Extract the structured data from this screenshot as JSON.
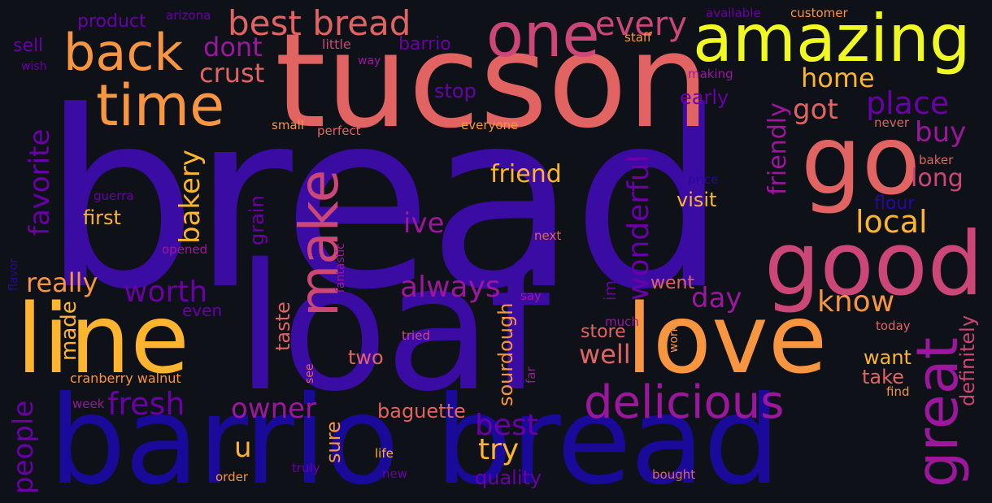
{
  "colors": {
    "background": "#0e1117",
    "dark_indigo": "#3a0ca3",
    "indigo": "#2a07a0",
    "navy": "#1a0a9a",
    "purple": "#6a00a8",
    "magenta": "#9c179e",
    "pink": "#cc4778",
    "salmon": "#e16462",
    "orange": "#f89540",
    "gold": "#fdb42f",
    "yellow": "#f0f921"
  },
  "words": [
    {
      "text": "bread",
      "color": "dark_indigo"
    },
    {
      "text": "tucson",
      "color": "salmon"
    },
    {
      "text": "barrio bread",
      "color": "navy"
    },
    {
      "text": "loaf",
      "color": "dark_indigo"
    },
    {
      "text": "love",
      "color": "orange"
    },
    {
      "text": "line",
      "color": "gold"
    },
    {
      "text": "good",
      "color": "pink"
    },
    {
      "text": "go",
      "color": "salmon"
    },
    {
      "text": "amazing",
      "color": "yellow"
    },
    {
      "text": "one",
      "color": "pink"
    },
    {
      "text": "great",
      "color": "magenta"
    },
    {
      "text": "time",
      "color": "orange"
    },
    {
      "text": "back",
      "color": "orange"
    },
    {
      "text": "make",
      "color": "pink"
    },
    {
      "text": "delicious",
      "color": "magenta"
    },
    {
      "text": "best bread",
      "color": "salmon"
    },
    {
      "text": "every",
      "color": "pink"
    },
    {
      "text": "favorite",
      "color": "purple"
    },
    {
      "text": "bakery",
      "color": "gold"
    },
    {
      "text": "home",
      "color": "gold"
    },
    {
      "text": "place",
      "color": "purple"
    },
    {
      "text": "got",
      "color": "salmon"
    },
    {
      "text": "buy",
      "color": "magenta"
    },
    {
      "text": "long",
      "color": "pink"
    },
    {
      "text": "local",
      "color": "gold"
    },
    {
      "text": "friend",
      "color": "gold"
    },
    {
      "text": "wonderful",
      "color": "purple"
    },
    {
      "text": "friendly",
      "color": "magenta"
    },
    {
      "text": "crust",
      "color": "salmon"
    },
    {
      "text": "dont",
      "color": "magenta"
    },
    {
      "text": "worth",
      "color": "purple"
    },
    {
      "text": "always",
      "color": "magenta"
    },
    {
      "text": "ive",
      "color": "magenta"
    },
    {
      "text": "know",
      "color": "orange"
    },
    {
      "text": "day",
      "color": "magenta"
    },
    {
      "text": "fresh",
      "color": "purple"
    },
    {
      "text": "owner",
      "color": "magenta"
    },
    {
      "text": "best",
      "color": "purple"
    },
    {
      "text": "try",
      "color": "gold"
    },
    {
      "text": "well",
      "color": "salmon"
    },
    {
      "text": "people",
      "color": "purple"
    },
    {
      "text": "really",
      "color": "orange"
    },
    {
      "text": "made",
      "color": "gold"
    },
    {
      "text": "u",
      "color": "gold"
    },
    {
      "text": "visit",
      "color": "gold"
    },
    {
      "text": "want",
      "color": "gold"
    },
    {
      "text": "take",
      "color": "salmon"
    },
    {
      "text": "definitely",
      "color": "pink"
    },
    {
      "text": "sourdough",
      "color": "orange"
    },
    {
      "text": "grain",
      "color": "purple"
    },
    {
      "text": "taste",
      "color": "salmon"
    },
    {
      "text": "first",
      "color": "gold"
    },
    {
      "text": "baguette",
      "color": "salmon"
    },
    {
      "text": "store",
      "color": "salmon"
    },
    {
      "text": "two",
      "color": "salmon"
    },
    {
      "text": "went",
      "color": "salmon"
    },
    {
      "text": "sure",
      "color": "orange"
    },
    {
      "text": "stop",
      "color": "purple"
    },
    {
      "text": "early",
      "color": "purple"
    },
    {
      "text": "quality",
      "color": "purple"
    },
    {
      "text": "sell",
      "color": "purple"
    },
    {
      "text": "product",
      "color": "purple"
    },
    {
      "text": "barrio",
      "color": "purple"
    },
    {
      "text": "even",
      "color": "purple"
    },
    {
      "text": "im",
      "color": "purple"
    },
    {
      "text": "flour",
      "color": "indigo"
    },
    {
      "text": "cranberry walnut",
      "color": "orange"
    },
    {
      "text": "arizona",
      "color": "purple"
    },
    {
      "text": "little",
      "color": "pink"
    },
    {
      "text": "way",
      "color": "magenta"
    },
    {
      "text": "wish",
      "color": "purple"
    },
    {
      "text": "available",
      "color": "purple"
    },
    {
      "text": "customer",
      "color": "orange"
    },
    {
      "text": "staff",
      "color": "orange"
    },
    {
      "text": "making",
      "color": "magenta"
    },
    {
      "text": "small",
      "color": "orange"
    },
    {
      "text": "perfect",
      "color": "salmon"
    },
    {
      "text": "everyone",
      "color": "orange"
    },
    {
      "text": "never",
      "color": "salmon"
    },
    {
      "text": "baker",
      "color": "salmon"
    },
    {
      "text": "price",
      "color": "indigo"
    },
    {
      "text": "guerra",
      "color": "purple"
    },
    {
      "text": "next",
      "color": "salmon"
    },
    {
      "text": "opened",
      "color": "magenta"
    },
    {
      "text": "fantastic",
      "color": "magenta"
    },
    {
      "text": "flavor",
      "color": "indigo"
    },
    {
      "text": "say",
      "color": "magenta"
    },
    {
      "text": "much",
      "color": "magenta"
    },
    {
      "text": "work",
      "color": "orange"
    },
    {
      "text": "today",
      "color": "salmon"
    },
    {
      "text": "tried",
      "color": "pink"
    },
    {
      "text": "week",
      "color": "magenta"
    },
    {
      "text": "see",
      "color": "salmon"
    },
    {
      "text": "find",
      "color": "orange"
    },
    {
      "text": "far",
      "color": "magenta"
    },
    {
      "text": "life",
      "color": "gold"
    },
    {
      "text": "new",
      "color": "purple"
    },
    {
      "text": "truly",
      "color": "purple"
    },
    {
      "text": "order",
      "color": "orange"
    },
    {
      "text": "bought",
      "color": "salmon"
    }
  ]
}
